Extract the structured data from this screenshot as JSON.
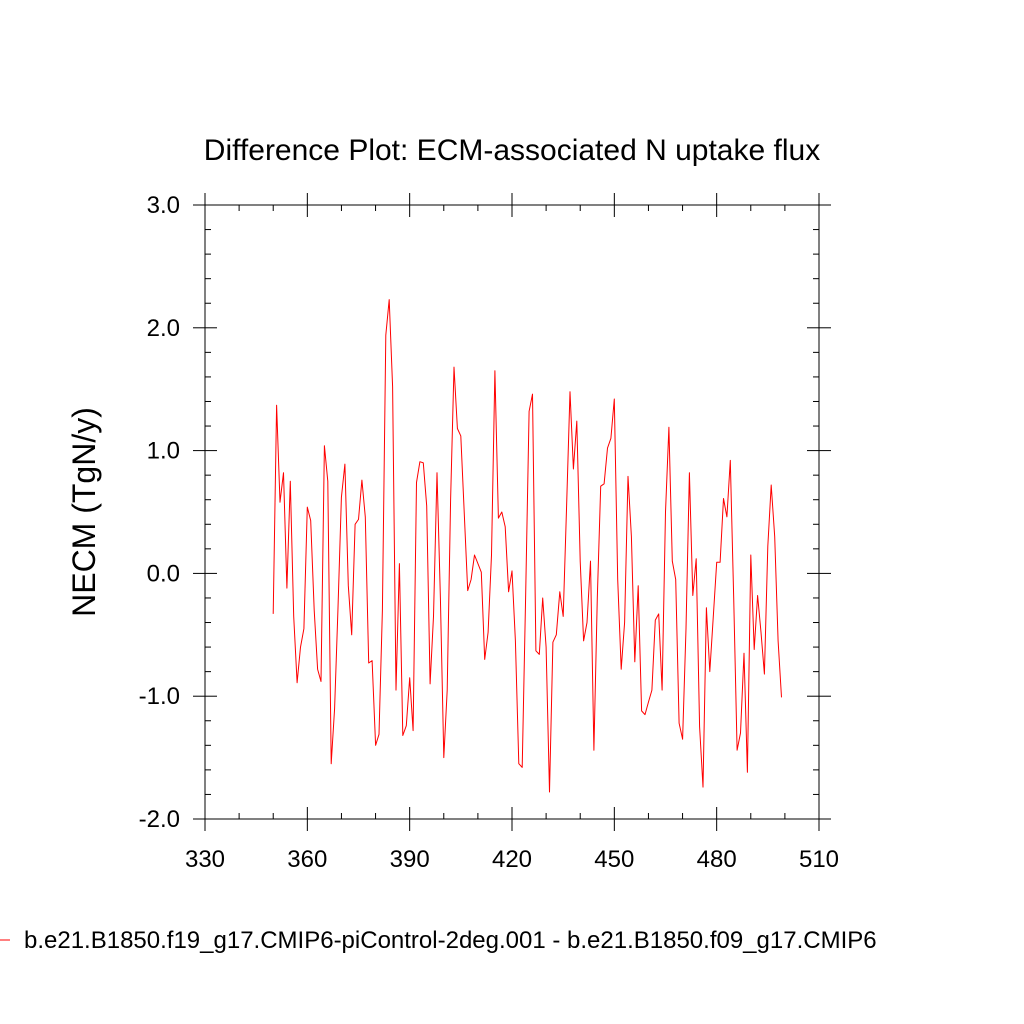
{
  "chart_data": {
    "type": "line",
    "title": "Difference Plot: ECM-associated N uptake flux",
    "xlabel": "",
    "ylabel": "NECM  (TgN/y)",
    "xlim": [
      330,
      510
    ],
    "ylim": [
      -2.0,
      3.0
    ],
    "x_ticks": [
      330,
      360,
      390,
      420,
      450,
      480,
      510
    ],
    "y_ticks": [
      -2.0,
      -1.0,
      0.0,
      1.0,
      2.0,
      3.0
    ],
    "x_tick_labels": [
      "330",
      "360",
      "390",
      "420",
      "450",
      "480",
      "510"
    ],
    "y_tick_labels": [
      "-2.0",
      "-1.0",
      "0.0",
      "1.0",
      "2.0",
      "3.0"
    ],
    "grid": false,
    "legend_position": "bottom",
    "series": [
      {
        "name": "b.e21.B1850.f19_g17.CMIP6-piControl-2deg.001 - b.e21.B1850.f09_g17.CMIP6",
        "color": "#ff0000",
        "x": [
          350,
          351,
          352,
          353,
          354,
          355,
          356,
          357,
          358,
          359,
          360,
          361,
          362,
          363,
          364,
          365,
          366,
          367,
          368,
          369,
          370,
          371,
          372,
          373,
          374,
          375,
          376,
          377,
          378,
          379,
          380,
          381,
          382,
          383,
          384,
          385,
          386,
          387,
          388,
          389,
          390,
          391,
          392,
          393,
          394,
          395,
          396,
          397,
          398,
          399,
          400,
          401,
          402,
          403,
          404,
          405,
          406,
          407,
          408,
          409,
          410,
          411,
          412,
          413,
          414,
          415,
          416,
          417,
          418,
          419,
          420,
          421,
          422,
          423,
          424,
          425,
          426,
          427,
          428,
          429,
          430,
          431,
          432,
          433,
          434,
          435,
          436,
          437,
          438,
          439,
          440,
          441,
          442,
          443,
          444,
          445,
          446,
          447,
          448,
          449,
          450,
          451,
          452,
          453,
          454,
          455,
          456,
          457,
          458,
          459,
          460,
          461,
          462,
          463,
          464,
          465,
          466,
          467,
          468,
          469,
          470,
          471,
          472,
          473,
          474,
          475,
          476,
          477,
          478,
          479,
          480,
          481,
          482,
          483,
          484,
          485,
          486,
          487,
          488,
          489,
          490,
          491,
          492,
          493,
          494,
          495,
          496,
          497,
          498,
          499
        ],
        "values": [
          -0.33,
          1.37,
          0.58,
          0.82,
          -0.12,
          0.75,
          -0.35,
          -0.89,
          -0.6,
          -0.45,
          0.54,
          0.43,
          -0.3,
          -0.78,
          -0.88,
          1.04,
          0.75,
          -1.55,
          -1.1,
          -0.28,
          0.62,
          0.89,
          -0.1,
          -0.5,
          0.4,
          0.44,
          0.76,
          0.46,
          -0.73,
          -0.71,
          -1.4,
          -1.31,
          -0.3,
          1.94,
          2.23,
          1.52,
          -0.95,
          0.08,
          -1.32,
          -1.24,
          -0.85,
          -1.28,
          0.74,
          0.91,
          0.9,
          0.55,
          -0.9,
          -0.35,
          0.82,
          -0.2,
          -1.5,
          -0.95,
          0.6,
          1.68,
          1.18,
          1.12,
          0.5,
          -0.14,
          -0.05,
          0.15,
          0.08,
          0.01,
          -0.7,
          -0.48,
          0.15,
          1.65,
          0.45,
          0.5,
          0.38,
          -0.15,
          0.02,
          -0.55,
          -1.55,
          -1.58,
          -0.2,
          1.32,
          1.46,
          -0.63,
          -0.66,
          -0.2,
          -0.6,
          -1.78,
          -0.56,
          -0.5,
          -0.15,
          -0.35,
          0.55,
          1.48,
          0.85,
          1.24,
          0.1,
          -0.55,
          -0.4,
          0.1,
          -1.44,
          -0.2,
          0.71,
          0.73,
          1.02,
          1.1,
          1.42,
          -0.05,
          -0.78,
          -0.4,
          0.79,
          0.3,
          -0.72,
          -0.1,
          -1.12,
          -1.15,
          -1.05,
          -0.95,
          -0.38,
          -0.33,
          -0.95,
          0.5,
          1.19,
          0.1,
          -0.05,
          -1.22,
          -1.35,
          -0.45,
          0.82,
          -0.18,
          0.12,
          -1.25,
          -1.74,
          -0.28,
          -0.8,
          -0.35,
          0.09,
          0.09,
          0.61,
          0.46,
          0.92,
          -0.2,
          -1.44,
          -1.3,
          -0.65,
          -1.62,
          0.15,
          -0.62,
          -0.18,
          -0.48,
          -0.82,
          0.22,
          0.72,
          0.3,
          -0.55,
          -1.01
        ]
      }
    ]
  }
}
